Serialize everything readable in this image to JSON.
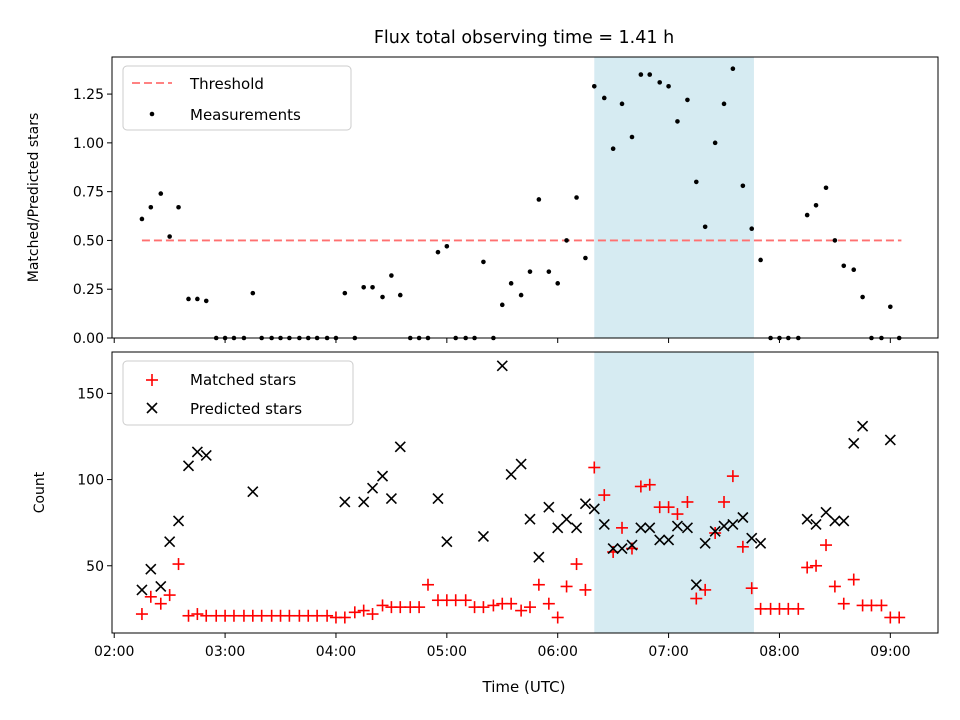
{
  "figure": {
    "title": "Flux total observing time = 1.41 h",
    "highlight_color": "#add8e6",
    "highlight_range": [
      6.33,
      7.77
    ]
  },
  "chart_data": [
    {
      "type": "scatter",
      "panel": "top",
      "ylabel": "Matched/Predicted stars",
      "xlabel": "",
      "xlim": [
        1.98,
        9.43
      ],
      "ylim": [
        0,
        1.44
      ],
      "yticks": [
        0.0,
        0.25,
        0.5,
        0.75,
        1.0,
        1.25
      ],
      "ytick_labels": [
        "0.00",
        "0.25",
        "0.50",
        "0.75",
        "1.00",
        "1.25"
      ],
      "legend_position": "upper-left",
      "threshold": {
        "name": "Threshold",
        "value": 0.5,
        "x_range": [
          2.25,
          9.1
        ],
        "color": "#ff7070"
      },
      "series": [
        {
          "name": "Measurements",
          "color": "#000000",
          "x": [
            2.25,
            2.33,
            2.42,
            2.5,
            2.58,
            2.67,
            2.75,
            2.83,
            2.92,
            3.0,
            3.08,
            3.17,
            3.25,
            3.33,
            3.42,
            3.5,
            3.58,
            3.67,
            3.75,
            3.83,
            3.92,
            4.0,
            4.08,
            4.17,
            4.25,
            4.33,
            4.42,
            4.5,
            4.58,
            4.67,
            4.75,
            4.83,
            4.92,
            5.0,
            5.08,
            5.17,
            5.25,
            5.33,
            5.42,
            5.5,
            5.58,
            5.67,
            5.75,
            5.83,
            5.92,
            6.0,
            6.08,
            6.17,
            6.25,
            6.33,
            6.42,
            6.5,
            6.58,
            6.67,
            6.75,
            6.83,
            6.92,
            7.0,
            7.08,
            7.17,
            7.25,
            7.33,
            7.42,
            7.5,
            7.58,
            7.67,
            7.75,
            7.83,
            7.92,
            8.0,
            8.08,
            8.17,
            8.25,
            8.33,
            8.42,
            8.5,
            8.58,
            8.67,
            8.75,
            8.83,
            8.92,
            9.0,
            9.08
          ],
          "y": [
            0.61,
            0.67,
            0.74,
            0.52,
            0.67,
            0.2,
            0.2,
            0.19,
            0.0,
            0.0,
            0.0,
            0.0,
            0.23,
            0.0,
            0.0,
            0.0,
            0.0,
            0.0,
            0.0,
            0.0,
            0.0,
            0.0,
            0.23,
            0.0,
            0.26,
            0.26,
            0.21,
            0.32,
            0.22,
            0.0,
            0.0,
            0.0,
            0.44,
            0.47,
            0.0,
            0.0,
            0.0,
            0.39,
            0.0,
            0.17,
            0.28,
            0.22,
            0.34,
            0.71,
            0.34,
            0.28,
            0.5,
            0.72,
            0.41,
            1.29,
            1.23,
            0.97,
            1.2,
            1.03,
            1.35,
            1.35,
            1.31,
            1.29,
            1.11,
            1.22,
            0.8,
            0.57,
            1.0,
            1.2,
            1.38,
            0.78,
            0.56,
            0.4,
            0.0,
            0.0,
            0.0,
            0.0,
            0.63,
            0.68,
            0.77,
            0.5,
            0.37,
            0.35,
            0.21,
            0.0,
            0.0,
            0.16,
            0.0
          ]
        }
      ]
    },
    {
      "type": "scatter",
      "panel": "bottom",
      "xlabel": "Time (UTC)",
      "ylabel": "Count",
      "xlim": [
        1.98,
        9.43
      ],
      "ylim": [
        11,
        174
      ],
      "xticks": [
        2,
        3,
        4,
        5,
        6,
        7,
        8,
        9
      ],
      "xtick_labels": [
        "02:00",
        "03:00",
        "04:00",
        "05:00",
        "06:00",
        "07:00",
        "08:00",
        "09:00"
      ],
      "yticks": [
        50,
        100,
        150
      ],
      "ytick_labels": [
        "50",
        "100",
        "150"
      ],
      "legend_position": "upper-left",
      "series": [
        {
          "name": "Matched stars",
          "marker": "plus",
          "color": "#ff0000",
          "x": [
            2.25,
            2.33,
            2.42,
            2.5,
            2.58,
            2.67,
            2.75,
            2.83,
            2.92,
            3.0,
            3.08,
            3.17,
            3.25,
            3.33,
            3.42,
            3.5,
            3.58,
            3.67,
            3.75,
            3.83,
            3.92,
            4.0,
            4.08,
            4.17,
            4.25,
            4.33,
            4.42,
            4.5,
            4.58,
            4.67,
            4.75,
            4.83,
            4.92,
            5.0,
            5.08,
            5.17,
            5.25,
            5.33,
            5.42,
            5.5,
            5.58,
            5.67,
            5.75,
            5.83,
            5.92,
            6.0,
            6.08,
            6.17,
            6.25,
            6.33,
            6.42,
            6.5,
            6.58,
            6.67,
            6.75,
            6.83,
            6.92,
            7.0,
            7.08,
            7.17,
            7.25,
            7.33,
            7.42,
            7.5,
            7.58,
            7.67,
            7.75,
            7.83,
            7.92,
            8.0,
            8.08,
            8.17,
            8.25,
            8.33,
            8.42,
            8.5,
            8.58,
            8.67,
            8.75,
            8.83,
            8.92,
            9.0,
            9.08
          ],
          "y": [
            22,
            32,
            28,
            33,
            51,
            21,
            22,
            21,
            21,
            21,
            21,
            21,
            21,
            21,
            21,
            21,
            21,
            21,
            21,
            21,
            21,
            20,
            20,
            23,
            24,
            22,
            27,
            26,
            26,
            26,
            26,
            39,
            30,
            30,
            30,
            30,
            26,
            26,
            27,
            28,
            28,
            24,
            26,
            39,
            28,
            20,
            38,
            51,
            36,
            107,
            91,
            58,
            72,
            60,
            96,
            97,
            84,
            84,
            80,
            87,
            31,
            36,
            69,
            87,
            102,
            61,
            37,
            25,
            25,
            25,
            25,
            25,
            49,
            50,
            62,
            38,
            28,
            42,
            27,
            27,
            27,
            20,
            20
          ]
        },
        {
          "name": "Predicted stars",
          "marker": "x",
          "color": "#000000",
          "x": [
            2.25,
            2.33,
            2.42,
            2.5,
            2.58,
            2.67,
            2.75,
            2.83,
            3.25,
            4.08,
            4.25,
            4.33,
            4.42,
            4.5,
            4.58,
            4.92,
            5.0,
            5.33,
            5.5,
            5.58,
            5.67,
            5.75,
            5.83,
            5.92,
            6.0,
            6.08,
            6.17,
            6.25,
            6.33,
            6.42,
            6.5,
            6.58,
            6.67,
            6.75,
            6.83,
            6.92,
            7.0,
            7.08,
            7.17,
            7.25,
            7.33,
            7.42,
            7.5,
            7.58,
            7.67,
            7.75,
            7.83,
            8.25,
            8.33,
            8.42,
            8.5,
            8.58,
            8.67,
            8.75,
            9.0
          ],
          "y": [
            36,
            48,
            38,
            64,
            76,
            108,
            116,
            114,
            93,
            87,
            87,
            95,
            102,
            89,
            119,
            89,
            64,
            67,
            166,
            103,
            109,
            77,
            55,
            84,
            72,
            77,
            72,
            86,
            83,
            74,
            60,
            60,
            62,
            72,
            72,
            65,
            65,
            73,
            72,
            39,
            63,
            70,
            73,
            74,
            78,
            66,
            63,
            77,
            74,
            81,
            76,
            76,
            121,
            131,
            123
          ]
        }
      ]
    }
  ]
}
